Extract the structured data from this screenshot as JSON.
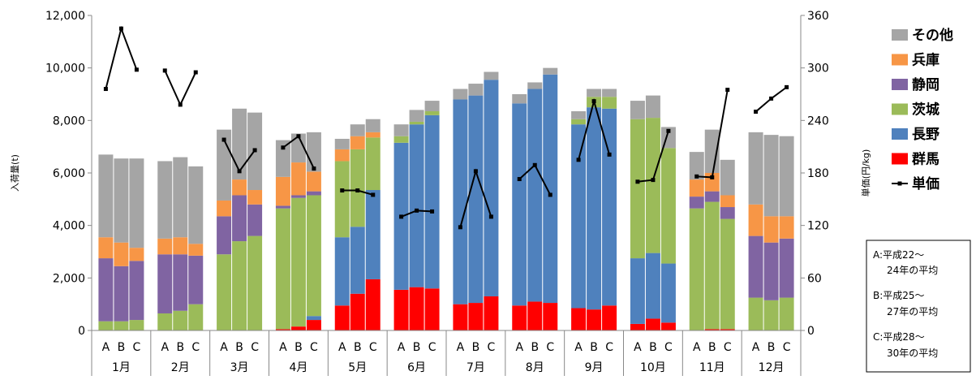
{
  "chart_data": {
    "type": "bar",
    "subtype": "stacked-bar-with-line",
    "months": [
      "1月",
      "2月",
      "3月",
      "4月",
      "5月",
      "6月",
      "7月",
      "8月",
      "9月",
      "10月",
      "11月",
      "12月"
    ],
    "period_labels": [
      "A",
      "B",
      "C"
    ],
    "ylabel": "入荷量(t)",
    "y2label": "単価(円/kg)",
    "ylim": [
      0,
      12000
    ],
    "y2lim": [
      0,
      360
    ],
    "yticks": [
      "0",
      "2,000",
      "4,000",
      "6,000",
      "8,000",
      "10,000",
      "12,000"
    ],
    "y2ticks": [
      "0",
      "60",
      "120",
      "180",
      "240",
      "300",
      "360"
    ],
    "grid": false,
    "legend_position": "right",
    "series": [
      {
        "name": "群馬",
        "color": "#ff0000",
        "values": [
          0,
          0,
          0,
          0,
          0,
          0,
          0,
          0,
          0,
          50,
          150,
          400,
          950,
          1400,
          1950,
          1550,
          1650,
          1600,
          1000,
          1050,
          1300,
          950,
          1100,
          1050,
          850,
          800,
          950,
          250,
          450,
          300,
          0,
          50,
          50,
          0,
          0,
          0
        ]
      },
      {
        "name": "長野",
        "color": "#4f81bd",
        "values": [
          0,
          0,
          0,
          0,
          0,
          0,
          0,
          0,
          0,
          0,
          0,
          150,
          2600,
          2550,
          3400,
          5600,
          6200,
          6600,
          7800,
          7900,
          8250,
          7700,
          8100,
          8700,
          7000,
          7700,
          7500,
          2500,
          2500,
          2250,
          0,
          0,
          0,
          0,
          0,
          0
        ]
      },
      {
        "name": "茨城",
        "color": "#9bbb59",
        "values": [
          350,
          350,
          400,
          650,
          750,
          1000,
          2900,
          3400,
          3600,
          4600,
          4900,
          4600,
          2900,
          2950,
          2000,
          250,
          100,
          150,
          0,
          0,
          0,
          0,
          0,
          0,
          200,
          400,
          450,
          5300,
          5150,
          4400,
          4650,
          4850,
          4200,
          1250,
          1150,
          1250
        ]
      },
      {
        "name": "静岡",
        "color": "#8064a2",
        "values": [
          2400,
          2100,
          2250,
          2250,
          2150,
          1850,
          1450,
          1750,
          1200,
          100,
          100,
          150,
          0,
          0,
          0,
          0,
          0,
          0,
          0,
          0,
          0,
          0,
          0,
          0,
          0,
          0,
          0,
          0,
          0,
          0,
          450,
          400,
          450,
          2350,
          2200,
          2250
        ]
      },
      {
        "name": "兵庫",
        "color": "#f79646",
        "values": [
          800,
          900,
          500,
          600,
          650,
          450,
          600,
          600,
          550,
          1100,
          1250,
          750,
          450,
          500,
          200,
          0,
          0,
          0,
          0,
          0,
          0,
          0,
          0,
          0,
          0,
          0,
          0,
          0,
          0,
          0,
          650,
          700,
          450,
          1200,
          1000,
          850
        ]
      },
      {
        "name": "その他",
        "color": "#a5a5a5",
        "values": [
          3150,
          3200,
          3400,
          2950,
          3050,
          2950,
          2700,
          2700,
          2950,
          1400,
          1100,
          1500,
          400,
          450,
          500,
          450,
          450,
          400,
          400,
          450,
          300,
          350,
          250,
          250,
          300,
          300,
          300,
          700,
          850,
          800,
          1050,
          1650,
          1350,
          2750,
          3100,
          3050
        ]
      }
    ],
    "price": {
      "name": "単価",
      "color": "#000000",
      "values": [
        276,
        345,
        298,
        297,
        258,
        295,
        218,
        182,
        206,
        209,
        222,
        185,
        160,
        160,
        155,
        130,
        137,
        136,
        118,
        182,
        130,
        173,
        189,
        155,
        195,
        262,
        201,
        170,
        172,
        228,
        176,
        175,
        275,
        250,
        265,
        278
      ]
    },
    "notes": [
      "A:平成22～",
      "24年の平均",
      "B:平成25～",
      "27年の平均",
      "C:平成28～",
      "30年の平均"
    ]
  }
}
